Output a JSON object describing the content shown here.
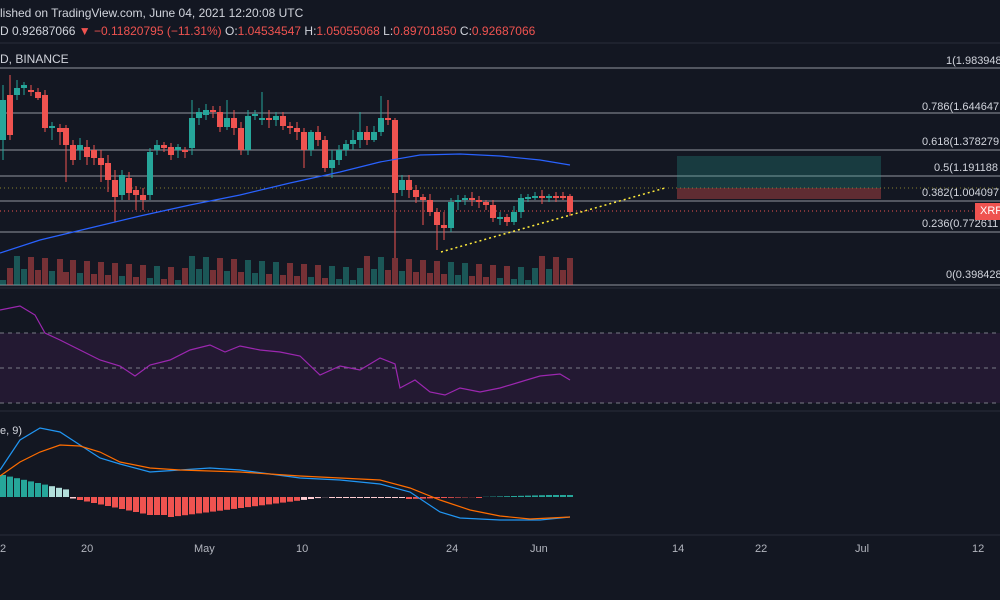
{
  "header": {
    "line1": "lished on TradingView.com, June 04, 2021 12:20:08 UTC",
    "symbol_suffix": "D",
    "price": "0.92687066",
    "change": "▼ −0.11820795 (−11.31%)",
    "o_label": "O:",
    "o_value": "1.04534547",
    "h_label": "H:",
    "h_value": "1.05055068",
    "l_label": "L:",
    "l_value": "0.89701850",
    "c_label": "C:",
    "c_value": "0.92687066",
    "exchange": "D, BINANCE"
  },
  "fib_levels": [
    {
      "label": "1(1.983948",
      "value": 1.983948
    },
    {
      "label": "0.786(1.644647",
      "value": 1.644647
    },
    {
      "label": "0.618(1.378279",
      "value": 1.378279
    },
    {
      "label": "0.5(1.191188",
      "value": 1.191188
    },
    {
      "label": "0.382(1.004097",
      "value": 1.004097
    },
    {
      "label": "0.236(0.772611",
      "value": 0.772611
    },
    {
      "label": "0(0.398428",
      "value": 0.398428
    }
  ],
  "price_tag": "XRP",
  "macd_label": "e, 9)",
  "x_axis": [
    "2",
    "20",
    "May",
    "10",
    "24",
    "Jun",
    "14",
    "22",
    "Jul",
    "12"
  ],
  "colors": {
    "up": "#26a69a",
    "down": "#ef5350",
    "ma": "#2962ff",
    "rsi": "#9c27b0",
    "macd": "#2196f3",
    "signal": "#ff6d00",
    "background": "#131722"
  }
}
